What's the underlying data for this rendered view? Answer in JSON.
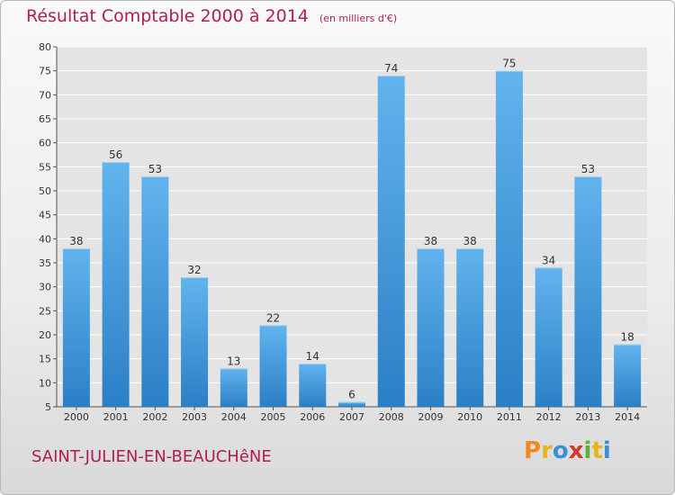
{
  "header": {
    "title": "Résultat Comptable 2000 à 2014",
    "unit": "(en milliers d'€)"
  },
  "footer": {
    "place": "SAINT-JULIEN-EN-BEAUCHêNE",
    "brand": "Proxiti",
    "brand_colors": [
      "#f08a1c",
      "#e8b516",
      "#3a8fd6",
      "#d0392b",
      "#5bb336",
      "#e8b516",
      "#3a8fd6"
    ]
  },
  "colors": {
    "bar_top": "#62b4ee",
    "bar_bottom": "#2b7fc5",
    "title": "#b01c55",
    "grid": "#ffffff"
  },
  "chart_data": {
    "type": "bar",
    "title": "Résultat Comptable 2000 à 2014",
    "subtitle": "(en milliers d'€)",
    "categories": [
      "2000",
      "2001",
      "2002",
      "2003",
      "2004",
      "2005",
      "2006",
      "2007",
      "2008",
      "2009",
      "2010",
      "2011",
      "2012",
      "2013",
      "2014"
    ],
    "values": [
      38,
      56,
      53,
      32,
      13,
      22,
      14,
      6,
      74,
      38,
      38,
      75,
      34,
      53,
      18
    ],
    "ylim": [
      5,
      80
    ],
    "yticks": [
      5,
      10,
      15,
      20,
      25,
      30,
      35,
      40,
      45,
      50,
      55,
      60,
      65,
      70,
      75,
      80
    ],
    "grid": true,
    "data_labels": true
  }
}
